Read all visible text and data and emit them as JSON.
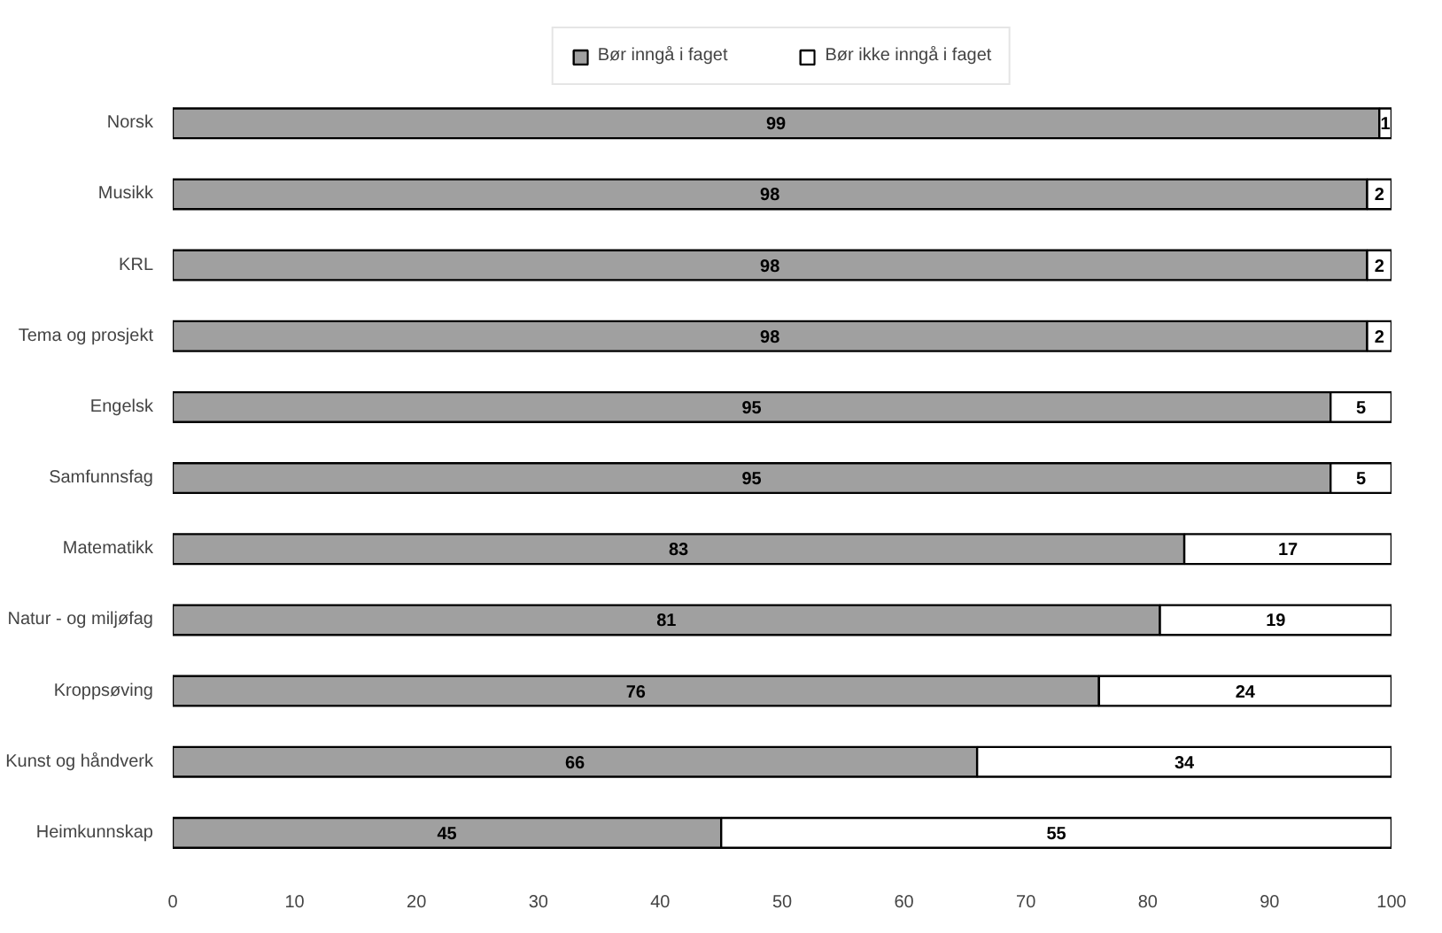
{
  "chart_data": {
    "type": "bar",
    "orientation": "horizontal",
    "stacked": true,
    "legend": "top",
    "data_labels": true,
    "grid": false,
    "categories": [
      "Norsk",
      "Musikk",
      "KRL",
      "Tema og prosjekt",
      "Engelsk",
      "Samfunnsfag",
      "Matematikk",
      "Natur - og miljøfag",
      "Kroppsøving",
      "Kunst og håndverk",
      "Heimkunnskap"
    ],
    "series": [
      {
        "name": "Bør inngå i faget",
        "color": "#a0a0a0",
        "values": [
          99,
          98,
          98,
          98,
          95,
          95,
          83,
          81,
          76,
          66,
          45
        ]
      },
      {
        "name": "Bør ikke inngå i faget",
        "color": "#ffffff",
        "values": [
          1,
          2,
          2,
          2,
          5,
          5,
          17,
          19,
          24,
          34,
          55
        ]
      }
    ],
    "xlim": [
      0,
      100
    ],
    "xticks": [
      0,
      10,
      20,
      30,
      40,
      50,
      60,
      70,
      80,
      90,
      100
    ]
  }
}
